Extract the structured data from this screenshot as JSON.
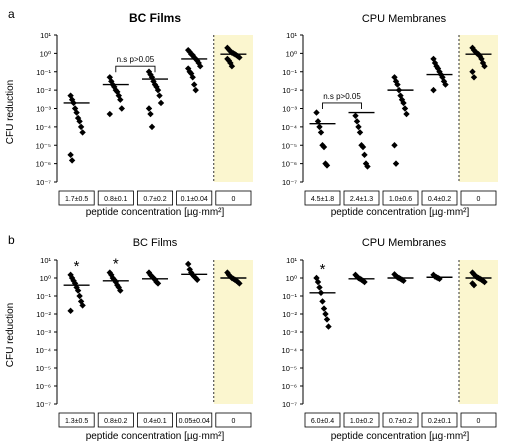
{
  "figure": {
    "colors": {
      "points": "#000000",
      "highlight": "#fbf6cf",
      "axis": "#000000",
      "divider": "#000000"
    }
  },
  "chart_data": [
    {
      "type": "scatter",
      "panel_label": "a",
      "title": "BC Films",
      "title_bold": true,
      "xlabel": "peptide concentration [µg·mm²]",
      "ylabel": "CFU reduction",
      "y_scale": "log",
      "ylim": [
        1e-07,
        10
      ],
      "y_ticks": [
        1e-07,
        1e-06,
        1e-05,
        0.0001,
        0.001,
        0.01,
        0.1,
        1,
        10
      ],
      "categories": [
        "1.7±0.5",
        "0.8±0.1",
        "0.7±0.2",
        "0.1±0.04",
        "0"
      ],
      "highlighted_category": "0",
      "medians": [
        0.002,
        0.02,
        0.04,
        0.5,
        0.9
      ],
      "points": [
        [
          0.005,
          0.003,
          0.002,
          0.001,
          0.0006,
          0.0003,
          0.0002,
          0.0001,
          5e-05,
          3e-06,
          1.5e-06
        ],
        [
          0.05,
          0.03,
          0.02,
          0.015,
          0.01,
          0.008,
          0.005,
          0.003,
          0.001,
          0.0005
        ],
        [
          0.1,
          0.07,
          0.05,
          0.03,
          0.02,
          0.015,
          0.01,
          0.005,
          0.002,
          0.001,
          0.0005,
          0.0001
        ],
        [
          1.5,
          1.2,
          0.9,
          0.8,
          0.6,
          0.5,
          0.4,
          0.3,
          0.2,
          0.15,
          0.1,
          0.08,
          0.05,
          0.02,
          0.01
        ],
        [
          2,
          1.6,
          1.3,
          1.1,
          1,
          0.9,
          0.8,
          0.7,
          0.6,
          0.5,
          0.4,
          0.3,
          0.2
        ]
      ],
      "annotation": {
        "text": "n.s p>0.05",
        "from_category": 1,
        "to_category": 2,
        "value": 0.2
      }
    },
    {
      "type": "scatter",
      "panel_label": "",
      "title": "CPU Membranes",
      "title_bold": false,
      "xlabel": "peptide concentration [µg·mm²]",
      "ylabel": "",
      "y_scale": "log",
      "ylim": [
        1e-07,
        10
      ],
      "y_ticks": [
        1e-07,
        1e-06,
        1e-05,
        0.0001,
        0.001,
        0.01,
        0.1,
        1,
        10
      ],
      "categories": [
        "4.5±1.8",
        "2.4±1.3",
        "1.0±0.6",
        "0.4±0.2",
        "0"
      ],
      "highlighted_category": "0",
      "medians": [
        0.00015,
        0.0006,
        0.01,
        0.07,
        0.9
      ],
      "points": [
        [
          0.0006,
          0.0002,
          0.0001,
          5e-05,
          1e-05,
          8e-06,
          1e-06,
          8e-07
        ],
        [
          0.0004,
          0.0002,
          0.0001,
          5e-05,
          1e-05,
          8e-06,
          3e-06,
          1e-06,
          7e-07
        ],
        [
          0.05,
          0.03,
          0.02,
          0.01,
          0.005,
          0.003,
          0.002,
          0.001,
          0.0005,
          1e-05,
          1e-06
        ],
        [
          0.5,
          0.3,
          0.2,
          0.15,
          0.1,
          0.07,
          0.05,
          0.03,
          0.02,
          0.01
        ],
        [
          2,
          1.5,
          1.2,
          1,
          0.9,
          0.7,
          0.5,
          0.3,
          0.2,
          0.1,
          0.05
        ]
      ],
      "annotation": {
        "text": "n.s p>0.05",
        "from_category": 0,
        "to_category": 1,
        "value": 0.002
      }
    },
    {
      "type": "scatter",
      "panel_label": "b",
      "title": "BC Films",
      "title_bold": false,
      "xlabel": "peptide concentration [µg·mm²]",
      "ylabel": "CFU reduction",
      "y_scale": "log",
      "ylim": [
        1e-07,
        10
      ],
      "y_ticks": [
        1e-07,
        1e-06,
        1e-05,
        0.0001,
        0.001,
        0.01,
        0.1,
        1,
        10
      ],
      "categories": [
        "1.3±0.5",
        "0.8±0.2",
        "0.4±0.1",
        "0.05±0.04",
        "0"
      ],
      "highlighted_category": "0",
      "medians": [
        0.4,
        0.7,
        0.9,
        1.6,
        1.0
      ],
      "points": [
        [
          1.5,
          1,
          0.7,
          0.5,
          0.3,
          0.2,
          0.1,
          0.05,
          0.03,
          0.015
        ],
        [
          2,
          1.5,
          1,
          0.8,
          0.6,
          0.4,
          0.3,
          0.2
        ],
        [
          2,
          1.5,
          1.2,
          1,
          0.8,
          0.6,
          0.5
        ],
        [
          6,
          3,
          2,
          1.5,
          1.2,
          1,
          0.8
        ],
        [
          2,
          1.5,
          1.2,
          1,
          0.9,
          0.8,
          0.7,
          0.6,
          0.5
        ]
      ],
      "significance": [
        {
          "category": 0,
          "text": "*"
        },
        {
          "category": 1,
          "text": "*"
        }
      ]
    },
    {
      "type": "scatter",
      "panel_label": "",
      "title": "CPU Membranes",
      "title_bold": false,
      "xlabel": "peptide concentration [µg·mm²]",
      "ylabel": "",
      "y_scale": "log",
      "ylim": [
        1e-07,
        10
      ],
      "y_ticks": [
        1e-07,
        1e-06,
        1e-05,
        0.0001,
        0.001,
        0.01,
        0.1,
        1,
        10
      ],
      "categories": [
        "6.0±0.4",
        "1.0±0.2",
        "0.7±0.2",
        "0.2±0.1",
        "0"
      ],
      "highlighted_category": "0",
      "medians": [
        0.15,
        0.9,
        1.0,
        1.1,
        1.0
      ],
      "points": [
        [
          1,
          0.6,
          0.3,
          0.15,
          0.05,
          0.02,
          0.01,
          0.005,
          0.002
        ],
        [
          1.5,
          1.2,
          1,
          0.9,
          0.8,
          0.7,
          0.6
        ],
        [
          1.6,
          1.3,
          1.1,
          1,
          0.9,
          0.8,
          0.7
        ],
        [
          1.5,
          1.2,
          1.1,
          1,
          0.9
        ],
        [
          2,
          1.6,
          1.3,
          1.1,
          1,
          0.9,
          0.8,
          0.7,
          0.6,
          0.5,
          0.4
        ]
      ],
      "significance": [
        {
          "category": 0,
          "text": "*"
        }
      ]
    }
  ]
}
